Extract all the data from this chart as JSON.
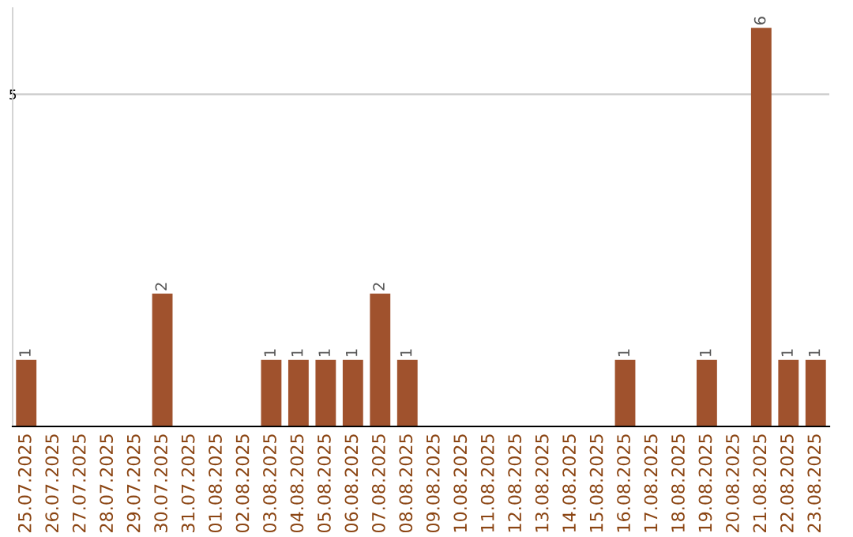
{
  "chart_data": {
    "type": "bar",
    "categories": [
      "25.07.2025",
      "26.07.2025",
      "27.07.2025",
      "28.07.2025",
      "29.07.2025",
      "30.07.2025",
      "31.07.2025",
      "01.08.2025",
      "02.08.2025",
      "03.08.2025",
      "04.08.2025",
      "05.08.2025",
      "06.08.2025",
      "07.08.2025",
      "08.08.2025",
      "09.08.2025",
      "10.08.2025",
      "11.08.2025",
      "12.08.2025",
      "13.08.2025",
      "14.08.2025",
      "15.08.2025",
      "16.08.2025",
      "17.08.2025",
      "18.08.2025",
      "19.08.2025",
      "20.08.2025",
      "21.08.2025",
      "22.08.2025",
      "23.08.2025"
    ],
    "values": [
      1,
      0,
      0,
      0,
      0,
      2,
      0,
      0,
      0,
      1,
      1,
      1,
      1,
      2,
      1,
      0,
      0,
      0,
      0,
      0,
      0,
      0,
      1,
      0,
      0,
      1,
      0,
      6,
      1,
      1
    ],
    "value_labels": [
      "1",
      null,
      null,
      null,
      null,
      "2",
      null,
      null,
      null,
      "1",
      "1",
      "1",
      "1",
      "2",
      "1",
      null,
      null,
      null,
      null,
      null,
      null,
      null,
      "1",
      null,
      null,
      "1",
      null,
      "6",
      "1",
      "1"
    ],
    "color": "#a0522d",
    "ylim": [
      0,
      6.3
    ],
    "yticks": [
      5
    ],
    "grid": "y"
  }
}
